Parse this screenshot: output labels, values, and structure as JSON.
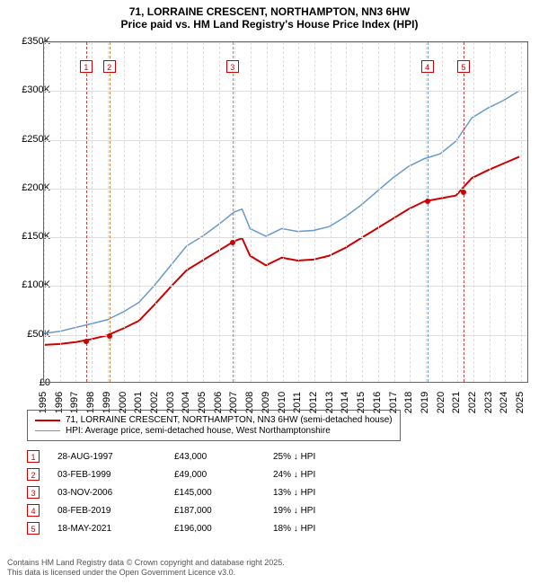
{
  "title": "71, LORRAINE CRESCENT, NORTHAMPTON, NN3 6HW",
  "subtitle": "Price paid vs. HM Land Registry's House Price Index (HPI)",
  "chart": {
    "type": "line",
    "background_color": "#ffffff",
    "border_color": "#666666",
    "grid_color": "#dddddd",
    "ylim": [
      0,
      350000
    ],
    "ytick_step": 50000,
    "yticks": [
      "£0",
      "£50K",
      "£100K",
      "£150K",
      "£200K",
      "£250K",
      "£300K",
      "£350K"
    ],
    "xlim": [
      1995,
      2025.5
    ],
    "xticks": [
      "1995",
      "1996",
      "1997",
      "1998",
      "1999",
      "2000",
      "2001",
      "2002",
      "2003",
      "2004",
      "2005",
      "2006",
      "2007",
      "2008",
      "2009",
      "2010",
      "2011",
      "2012",
      "2013",
      "2014",
      "2015",
      "2016",
      "2017",
      "2018",
      "2019",
      "2020",
      "2021",
      "2022",
      "2023",
      "2024",
      "2025"
    ],
    "tick_fontsize": 11,
    "series": [
      {
        "name": "property",
        "label": "71, LORRAINE CRESCENT, NORTHAMPTON, NN3 6HW (semi-detached house)",
        "color": "#cc0000",
        "line_width": 2,
        "x": [
          1995,
          1996,
          1997,
          1998,
          1999,
          2000,
          2001,
          2002,
          2003,
          2004,
          2005,
          2006,
          2007,
          2007.5,
          2008,
          2009,
          2010,
          2011,
          2012,
          2013,
          2014,
          2015,
          2016,
          2017,
          2018,
          2019,
          2020,
          2021,
          2022,
          2023,
          2024,
          2025
        ],
        "y": [
          38000,
          39000,
          41000,
          44000,
          48000,
          55000,
          63000,
          80000,
          98000,
          115000,
          125000,
          135000,
          145000,
          148000,
          130000,
          120000,
          128000,
          125000,
          126000,
          130000,
          138000,
          148000,
          158000,
          168000,
          178000,
          186000,
          189000,
          192000,
          210000,
          218000,
          225000,
          232000
        ]
      },
      {
        "name": "hpi",
        "label": "HPI: Average price, semi-detached house, West Northamptonshire",
        "color": "#6699cc",
        "line_width": 1.5,
        "x": [
          1995,
          1996,
          1997,
          1998,
          1999,
          2000,
          2001,
          2002,
          2003,
          2004,
          2005,
          2006,
          2007,
          2007.5,
          2008,
          2009,
          2010,
          2011,
          2012,
          2013,
          2014,
          2015,
          2016,
          2017,
          2018,
          2019,
          2020,
          2021,
          2022,
          2023,
          2024,
          2025
        ],
        "y": [
          50000,
          52000,
          56000,
          60000,
          64000,
          72000,
          82000,
          100000,
          120000,
          140000,
          150000,
          162000,
          175000,
          178000,
          158000,
          150000,
          158000,
          155000,
          156000,
          160000,
          170000,
          182000,
          196000,
          210000,
          222000,
          230000,
          235000,
          248000,
          272000,
          282000,
          290000,
          300000
        ]
      }
    ],
    "markers": [
      {
        "n": "1",
        "year": 1997.65,
        "value": 43000,
        "color": "#cc4444"
      },
      {
        "n": "2",
        "year": 1999.1,
        "value": 49000,
        "color": "#cc8844"
      },
      {
        "n": "3",
        "year": 2006.85,
        "value": 145000,
        "color": "#6699cc"
      },
      {
        "n": "4",
        "year": 2019.1,
        "value": 187000,
        "color": "#6699cc"
      },
      {
        "n": "5",
        "year": 2021.38,
        "value": 196000,
        "color": "#cc4444"
      }
    ]
  },
  "legend": {
    "items": [
      {
        "color": "#cc0000",
        "width": 2,
        "label": "71, LORRAINE CRESCENT, NORTHAMPTON, NN3 6HW (semi-detached house)"
      },
      {
        "color": "#6699cc",
        "width": 1.5,
        "label": "HPI: Average price, semi-detached house, West Northamptonshire"
      }
    ]
  },
  "transactions": [
    {
      "n": "1",
      "date": "28-AUG-1997",
      "price": "£43,000",
      "pct": "25% ↓ HPI"
    },
    {
      "n": "2",
      "date": "03-FEB-1999",
      "price": "£49,000",
      "pct": "24% ↓ HPI"
    },
    {
      "n": "3",
      "date": "03-NOV-2006",
      "price": "£145,000",
      "pct": "13% ↓ HPI"
    },
    {
      "n": "4",
      "date": "08-FEB-2019",
      "price": "£187,000",
      "pct": "19% ↓ HPI"
    },
    {
      "n": "5",
      "date": "18-MAY-2021",
      "price": "£196,000",
      "pct": "18% ↓ HPI"
    }
  ],
  "footer_line1": "Contains HM Land Registry data © Crown copyright and database right 2025.",
  "footer_line2": "This data is licensed under the Open Government Licence v3.0."
}
